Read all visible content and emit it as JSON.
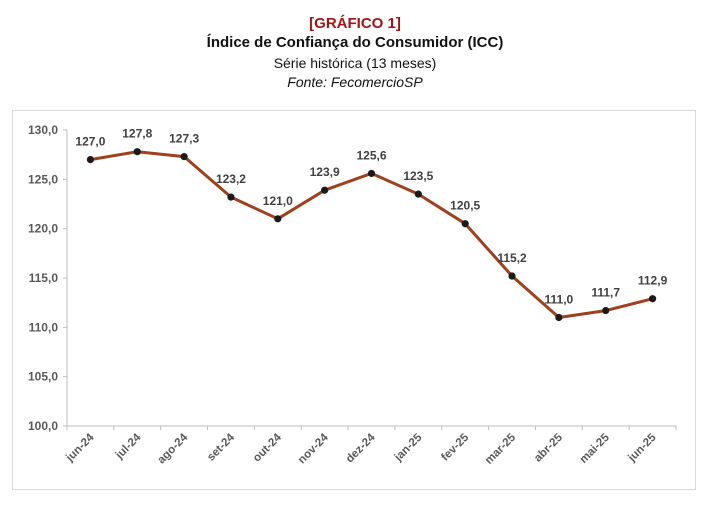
{
  "header": {
    "label": "[GRÁFICO 1]",
    "title": "Índice de Confiança do Consumidor (ICC)",
    "subtitle": "Série histórica (13 meses)",
    "source": "Fonte: FecomercioSP"
  },
  "colors": {
    "line": "#a0401c",
    "marker": "#1a1a1a",
    "title_accent": "#a31515",
    "axis": "#bfbfbf",
    "text": "#595959"
  },
  "chart_data": {
    "type": "line",
    "title": "Índice de Confiança do Consumidor (ICC)",
    "categories": [
      "jun-24",
      "jul-24",
      "ago-24",
      "set-24",
      "out-24",
      "nov-24",
      "dez-24",
      "jan-25",
      "fev-25",
      "mar-25",
      "abr-25",
      "mai-25",
      "jun-25"
    ],
    "values": [
      127.0,
      127.8,
      127.3,
      123.2,
      121.0,
      123.9,
      125.6,
      123.5,
      120.5,
      115.2,
      111.0,
      111.7,
      112.9
    ],
    "value_labels": [
      "127,0",
      "127,8",
      "127,3",
      "123,2",
      "121,0",
      "123,9",
      "125,6",
      "123,5",
      "120,5",
      "115,2",
      "111,0",
      "111,7",
      "112,9"
    ],
    "yticks": [
      100,
      105,
      110,
      115,
      120,
      125,
      130
    ],
    "ytick_labels": [
      "100,0",
      "105,0",
      "110,0",
      "115,0",
      "120,0",
      "125,0",
      "130,0"
    ],
    "ylim": [
      100,
      130
    ],
    "xlabel": "",
    "ylabel": "",
    "grid": false,
    "legend": "none"
  }
}
